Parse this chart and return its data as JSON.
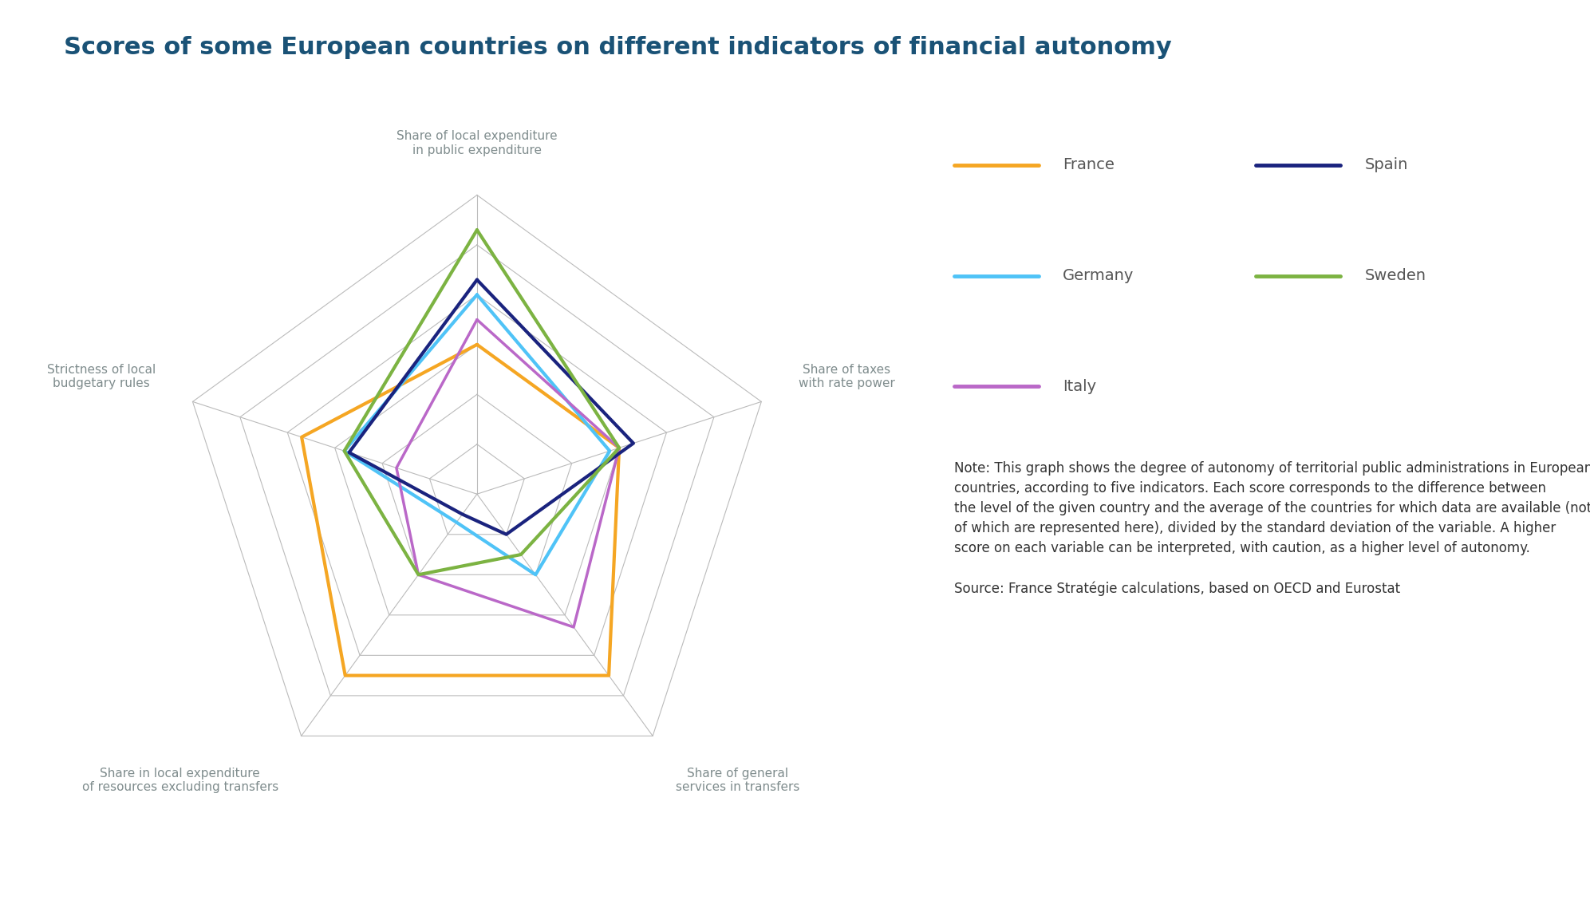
{
  "title": "Scores of some European countries on different indicators of financial autonomy",
  "title_color": "#1a5276",
  "title_fontsize": 22,
  "background_color": "#ffffff",
  "categories": [
    "Share of local expenditure\nin public expenditure",
    "Share of taxes\nwith rate power",
    "Share of general\nservices in transfers",
    "Share in local expenditure\nof resources excluding transfers",
    "Strictness of local\nbudgetary rules"
  ],
  "countries": [
    "France",
    "Germany",
    "Italy",
    "Spain",
    "Sweden"
  ],
  "colors": {
    "France": "#f5a623",
    "Germany": "#4fc3f7",
    "Italy": "#ba68c8",
    "Spain": "#1a237e",
    "Sweden": "#7cb342"
  },
  "line_widths": {
    "France": 3.0,
    "Germany": 3.0,
    "Italy": 2.5,
    "Spain": 3.0,
    "Sweden": 3.0
  },
  "data": {
    "France": [
      0.5,
      0.5,
      2.0,
      2.0,
      1.2
    ],
    "Germany": [
      1.5,
      0.3,
      -0.5,
      -1.8,
      0.3
    ],
    "Italy": [
      1.0,
      0.5,
      0.8,
      -0.5,
      -0.8
    ],
    "Spain": [
      1.8,
      0.8,
      -1.5,
      -2.0,
      0.2
    ],
    "Sweden": [
      2.8,
      0.5,
      -1.0,
      -0.5,
      0.3
    ]
  },
  "scale_min": -2.5,
  "scale_max": 3.5,
  "scale_levels": 6,
  "grid_color": "#bbbbbb",
  "label_color": "#7f8c8d",
  "label_fontsize": 11,
  "note_text": "Note: This graph shows the degree of autonomy of territorial public administrations in European\ncountries, according to five indicators. Each score corresponds to the difference between\nthe level of the given country and the average of the countries for which data are available (not all\nof which are represented here), divided by the standard deviation of the variable. A higher\nscore on each variable can be interpreted, with caution, as a higher level of autonomy.\n\nSource: France Stratégie calculations, based on OECD and Eurostat",
  "note_fontsize": 12
}
